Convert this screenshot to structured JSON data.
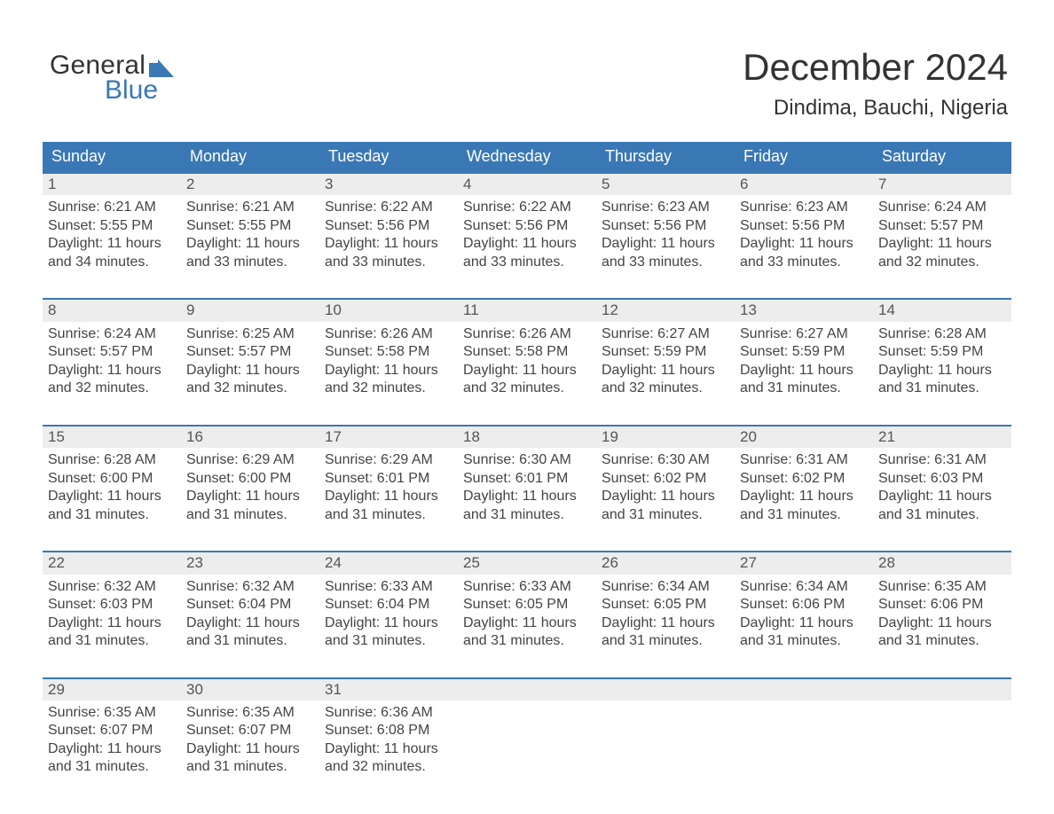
{
  "logo": {
    "line1": "General",
    "line2": "Blue",
    "accent_color": "#3a78b5",
    "text_color": "#333333"
  },
  "title": "December 2024",
  "location": "Dindima, Bauchi, Nigeria",
  "header_bg": "#3a78b5",
  "header_fg": "#ffffff",
  "daynum_bg": "#ededed",
  "week_border": "#3a78b5",
  "day_headers": [
    "Sunday",
    "Monday",
    "Tuesday",
    "Wednesday",
    "Thursday",
    "Friday",
    "Saturday"
  ],
  "label_sunrise": "Sunrise: ",
  "label_sunset": "Sunset: ",
  "label_daylight1": "Daylight: ",
  "body_fontsize": 16,
  "header_fontsize": 18,
  "title_fontsize": 42,
  "location_fontsize": 24,
  "weeks": [
    [
      {
        "n": "1",
        "sr": "6:21 AM",
        "ss": "5:55 PM",
        "dl1": "11 hours",
        "dl2": "and 34 minutes."
      },
      {
        "n": "2",
        "sr": "6:21 AM",
        "ss": "5:55 PM",
        "dl1": "11 hours",
        "dl2": "and 33 minutes."
      },
      {
        "n": "3",
        "sr": "6:22 AM",
        "ss": "5:56 PM",
        "dl1": "11 hours",
        "dl2": "and 33 minutes."
      },
      {
        "n": "4",
        "sr": "6:22 AM",
        "ss": "5:56 PM",
        "dl1": "11 hours",
        "dl2": "and 33 minutes."
      },
      {
        "n": "5",
        "sr": "6:23 AM",
        "ss": "5:56 PM",
        "dl1": "11 hours",
        "dl2": "and 33 minutes."
      },
      {
        "n": "6",
        "sr": "6:23 AM",
        "ss": "5:56 PM",
        "dl1": "11 hours",
        "dl2": "and 33 minutes."
      },
      {
        "n": "7",
        "sr": "6:24 AM",
        "ss": "5:57 PM",
        "dl1": "11 hours",
        "dl2": "and 32 minutes."
      }
    ],
    [
      {
        "n": "8",
        "sr": "6:24 AM",
        "ss": "5:57 PM",
        "dl1": "11 hours",
        "dl2": "and 32 minutes."
      },
      {
        "n": "9",
        "sr": "6:25 AM",
        "ss": "5:57 PM",
        "dl1": "11 hours",
        "dl2": "and 32 minutes."
      },
      {
        "n": "10",
        "sr": "6:26 AM",
        "ss": "5:58 PM",
        "dl1": "11 hours",
        "dl2": "and 32 minutes."
      },
      {
        "n": "11",
        "sr": "6:26 AM",
        "ss": "5:58 PM",
        "dl1": "11 hours",
        "dl2": "and 32 minutes."
      },
      {
        "n": "12",
        "sr": "6:27 AM",
        "ss": "5:59 PM",
        "dl1": "11 hours",
        "dl2": "and 32 minutes."
      },
      {
        "n": "13",
        "sr": "6:27 AM",
        "ss": "5:59 PM",
        "dl1": "11 hours",
        "dl2": "and 31 minutes."
      },
      {
        "n": "14",
        "sr": "6:28 AM",
        "ss": "5:59 PM",
        "dl1": "11 hours",
        "dl2": "and 31 minutes."
      }
    ],
    [
      {
        "n": "15",
        "sr": "6:28 AM",
        "ss": "6:00 PM",
        "dl1": "11 hours",
        "dl2": "and 31 minutes."
      },
      {
        "n": "16",
        "sr": "6:29 AM",
        "ss": "6:00 PM",
        "dl1": "11 hours",
        "dl2": "and 31 minutes."
      },
      {
        "n": "17",
        "sr": "6:29 AM",
        "ss": "6:01 PM",
        "dl1": "11 hours",
        "dl2": "and 31 minutes."
      },
      {
        "n": "18",
        "sr": "6:30 AM",
        "ss": "6:01 PM",
        "dl1": "11 hours",
        "dl2": "and 31 minutes."
      },
      {
        "n": "19",
        "sr": "6:30 AM",
        "ss": "6:02 PM",
        "dl1": "11 hours",
        "dl2": "and 31 minutes."
      },
      {
        "n": "20",
        "sr": "6:31 AM",
        "ss": "6:02 PM",
        "dl1": "11 hours",
        "dl2": "and 31 minutes."
      },
      {
        "n": "21",
        "sr": "6:31 AM",
        "ss": "6:03 PM",
        "dl1": "11 hours",
        "dl2": "and 31 minutes."
      }
    ],
    [
      {
        "n": "22",
        "sr": "6:32 AM",
        "ss": "6:03 PM",
        "dl1": "11 hours",
        "dl2": "and 31 minutes."
      },
      {
        "n": "23",
        "sr": "6:32 AM",
        "ss": "6:04 PM",
        "dl1": "11 hours",
        "dl2": "and 31 minutes."
      },
      {
        "n": "24",
        "sr": "6:33 AM",
        "ss": "6:04 PM",
        "dl1": "11 hours",
        "dl2": "and 31 minutes."
      },
      {
        "n": "25",
        "sr": "6:33 AM",
        "ss": "6:05 PM",
        "dl1": "11 hours",
        "dl2": "and 31 minutes."
      },
      {
        "n": "26",
        "sr": "6:34 AM",
        "ss": "6:05 PM",
        "dl1": "11 hours",
        "dl2": "and 31 minutes."
      },
      {
        "n": "27",
        "sr": "6:34 AM",
        "ss": "6:06 PM",
        "dl1": "11 hours",
        "dl2": "and 31 minutes."
      },
      {
        "n": "28",
        "sr": "6:35 AM",
        "ss": "6:06 PM",
        "dl1": "11 hours",
        "dl2": "and 31 minutes."
      }
    ],
    [
      {
        "n": "29",
        "sr": "6:35 AM",
        "ss": "6:07 PM",
        "dl1": "11 hours",
        "dl2": "and 31 minutes."
      },
      {
        "n": "30",
        "sr": "6:35 AM",
        "ss": "6:07 PM",
        "dl1": "11 hours",
        "dl2": "and 31 minutes."
      },
      {
        "n": "31",
        "sr": "6:36 AM",
        "ss": "6:08 PM",
        "dl1": "11 hours",
        "dl2": "and 32 minutes."
      },
      null,
      null,
      null,
      null
    ]
  ]
}
